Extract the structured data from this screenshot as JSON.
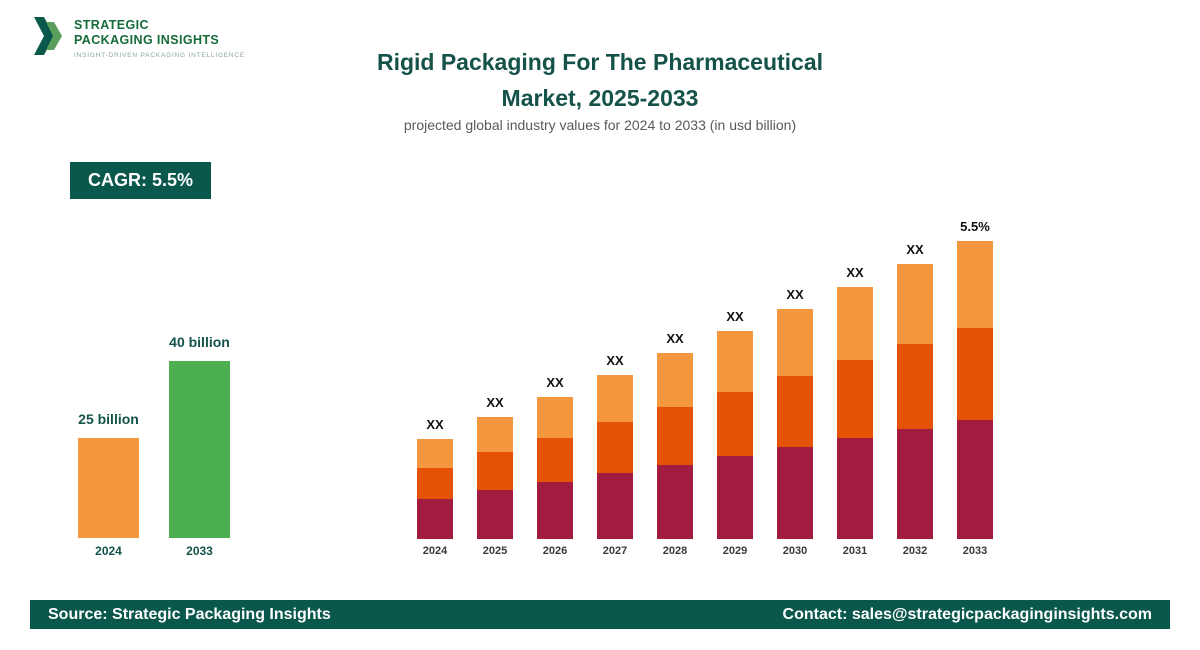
{
  "logo": {
    "name_line1": "STRATEGIC",
    "name_line2": "PACKAGING INSIGHTS",
    "tagline": "INSIGHT-DRIVEN PACKAGING INTELLIGENCE"
  },
  "header": {
    "title_line1": "Rigid Packaging For The Pharmaceutical",
    "title_line2": "Market, 2025-2033",
    "subtitle": "projected global industry values for 2024 to 2033 (in usd billion)"
  },
  "cagr_badge": "CAGR: 5.5%",
  "colors": {
    "brand_dark_green": "#0a584b",
    "title_teal": "#14524a",
    "orange": "#f5973f",
    "green": "#4caf50",
    "maroon": "#a21c3f",
    "dark_orange": "#e35205",
    "light_orange": "#f5973f"
  },
  "chart_data": [
    {
      "type": "bar",
      "name": "summary-growth-chart",
      "bars": [
        {
          "year": "2024",
          "label": "25 billion",
          "value": 25,
          "color": "#f5973f",
          "height": 100
        },
        {
          "year": "2033",
          "label": "40 billion",
          "value": 40,
          "color": "#4caf50",
          "height": 177
        }
      ],
      "ylabel": "usd billion"
    },
    {
      "type": "stacked-bar",
      "name": "yearly-projection-chart",
      "title": "Rigid Packaging For The Pharmaceutical Market, 2025-2033",
      "subtitle": "projected global industry values for 2024 to 2033 (in usd billion)",
      "categories": [
        "2024",
        "2025",
        "2026",
        "2027",
        "2028",
        "2029",
        "2030",
        "2031",
        "2032",
        "2033"
      ],
      "bar_labels": [
        "XX",
        "XX",
        "XX",
        "XX",
        "XX",
        "XX",
        "XX",
        "XX",
        "XX",
        "5.5%"
      ],
      "relative_heights": [
        100,
        122,
        142,
        164,
        186,
        208,
        230,
        252,
        275,
        298
      ],
      "series": [
        {
          "name": "segment-bottom",
          "color": "#a21c3f",
          "proportion": 0.4
        },
        {
          "name": "segment-middle",
          "color": "#e35205",
          "proportion": 0.31
        },
        {
          "name": "segment-top",
          "color": "#f5973f",
          "proportion": 0.29
        }
      ],
      "legend": "none",
      "grid": false
    }
  ],
  "footer": {
    "source": "Source: Strategic Packaging Insights",
    "contact": "Contact: sales@strategicpackaginginsights.com"
  }
}
